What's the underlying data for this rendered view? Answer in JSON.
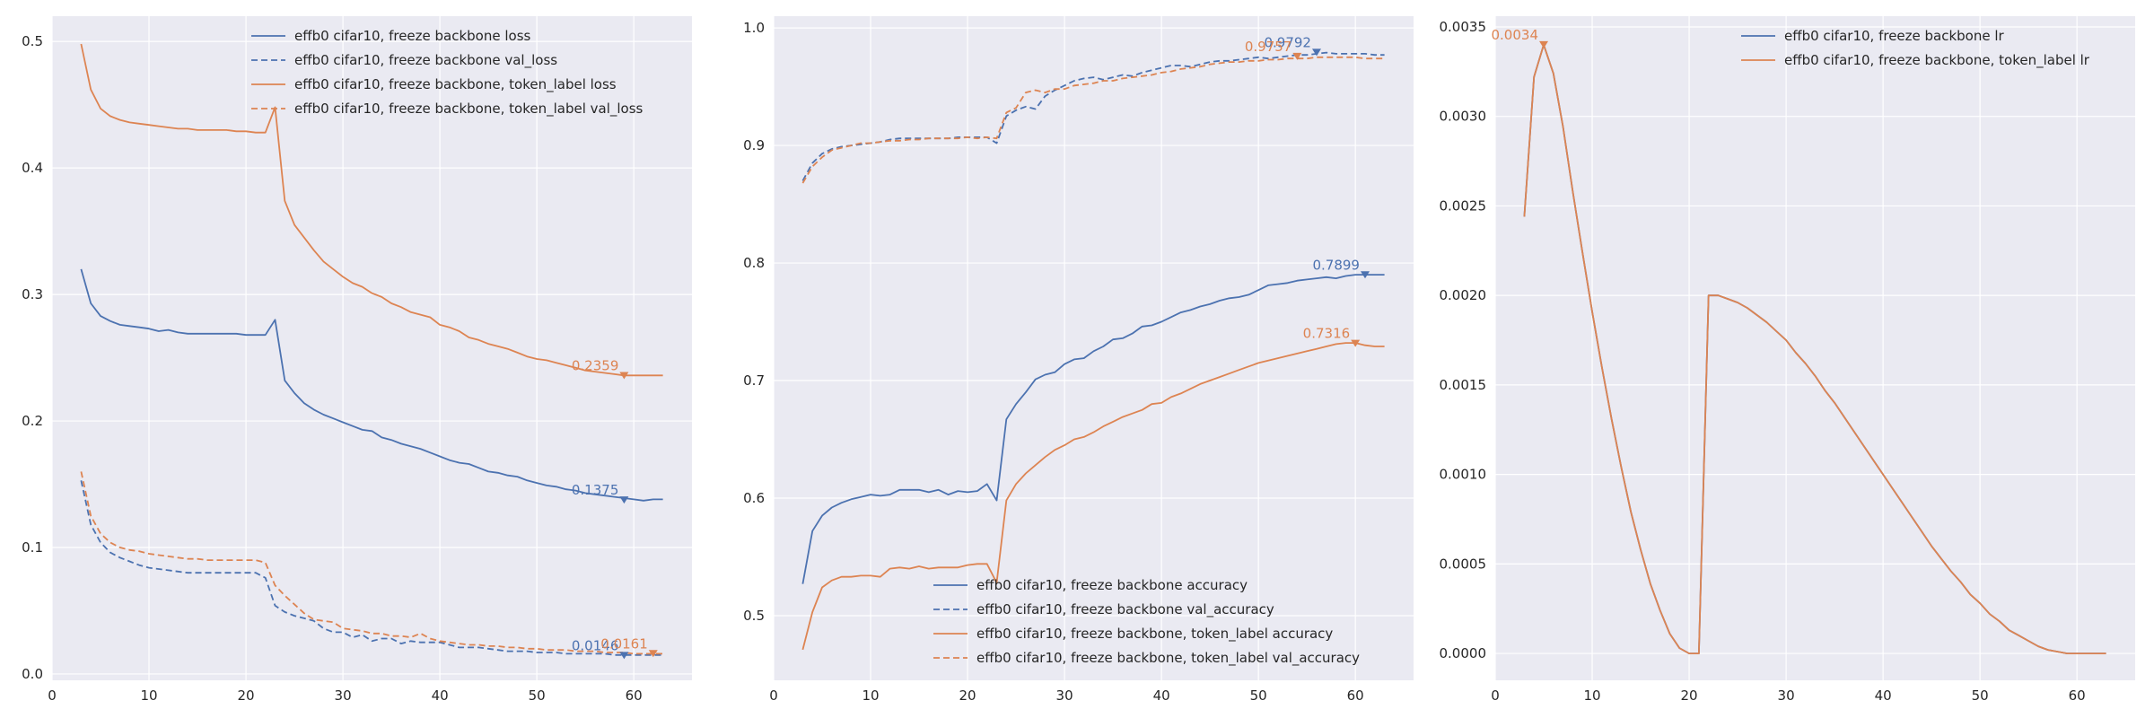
{
  "chart_data": [
    {
      "type": "line",
      "title": "",
      "xlabel": "",
      "ylabel": "",
      "xlim": [
        0,
        66
      ],
      "ylim": [
        -0.005,
        0.52
      ],
      "xticks": [
        0,
        10,
        20,
        30,
        40,
        50,
        60
      ],
      "yticks": [
        0.0,
        0.1,
        0.2,
        0.3,
        0.4,
        0.5
      ],
      "ytick_decimals": 1,
      "grid": true,
      "legend_position": "top-right",
      "x": [
        3,
        4,
        5,
        6,
        7,
        8,
        9,
        10,
        11,
        12,
        13,
        14,
        15,
        16,
        17,
        18,
        19,
        20,
        21,
        22,
        23,
        24,
        25,
        26,
        27,
        28,
        29,
        30,
        31,
        32,
        33,
        34,
        35,
        36,
        37,
        38,
        39,
        40,
        41,
        42,
        43,
        44,
        45,
        46,
        47,
        48,
        49,
        50,
        51,
        52,
        53,
        54,
        55,
        56,
        57,
        58,
        59,
        60,
        61,
        62,
        63
      ],
      "series": [
        {
          "name": "effb0 cifar10, freeze backbone loss",
          "color": "#4c72b0",
          "dash": "solid",
          "values": [
            0.32,
            0.293,
            0.283,
            0.279,
            0.276,
            0.275,
            0.274,
            0.273,
            0.271,
            0.272,
            0.27,
            0.269,
            0.269,
            0.269,
            0.269,
            0.269,
            0.269,
            0.268,
            0.268,
            0.268,
            0.28,
            0.232,
            0.222,
            0.214,
            0.209,
            0.205,
            0.202,
            0.199,
            0.196,
            0.193,
            0.192,
            0.187,
            0.185,
            0.182,
            0.18,
            0.178,
            0.175,
            0.172,
            0.169,
            0.167,
            0.166,
            0.163,
            0.16,
            0.159,
            0.157,
            0.156,
            0.153,
            0.151,
            0.149,
            0.148,
            0.146,
            0.145,
            0.143,
            0.142,
            0.141,
            0.14,
            0.139,
            0.138,
            0.137,
            0.138,
            0.138
          ]
        },
        {
          "name": "effb0 cifar10, freeze backbone val_loss",
          "color": "#4c72b0",
          "dash": "dashed",
          "values": [
            0.153,
            0.118,
            0.104,
            0.096,
            0.092,
            0.089,
            0.086,
            0.084,
            0.083,
            0.082,
            0.081,
            0.08,
            0.08,
            0.08,
            0.08,
            0.08,
            0.08,
            0.08,
            0.08,
            0.076,
            0.054,
            0.049,
            0.046,
            0.044,
            0.042,
            0.036,
            0.033,
            0.033,
            0.029,
            0.031,
            0.026,
            0.028,
            0.028,
            0.024,
            0.026,
            0.025,
            0.025,
            0.025,
            0.023,
            0.021,
            0.021,
            0.021,
            0.02,
            0.019,
            0.018,
            0.018,
            0.018,
            0.017,
            0.017,
            0.017,
            0.016,
            0.016,
            0.016,
            0.016,
            0.016,
            0.015,
            0.015,
            0.015,
            0.015,
            0.015,
            0.015
          ]
        },
        {
          "name": "effb0 cifar10, freeze backbone, token_label loss",
          "color": "#dd8452",
          "dash": "solid",
          "values": [
            0.498,
            0.462,
            0.447,
            0.441,
            0.438,
            0.436,
            0.435,
            0.434,
            0.433,
            0.432,
            0.431,
            0.431,
            0.43,
            0.43,
            0.43,
            0.43,
            0.429,
            0.429,
            0.428,
            0.428,
            0.448,
            0.374,
            0.355,
            0.345,
            0.335,
            0.326,
            0.32,
            0.314,
            0.309,
            0.306,
            0.301,
            0.298,
            0.293,
            0.29,
            0.286,
            0.284,
            0.282,
            0.276,
            0.274,
            0.271,
            0.266,
            0.264,
            0.261,
            0.259,
            0.257,
            0.254,
            0.251,
            0.249,
            0.248,
            0.246,
            0.244,
            0.242,
            0.24,
            0.239,
            0.238,
            0.237,
            0.236,
            0.236,
            0.236,
            0.236,
            0.236
          ]
        },
        {
          "name": "effb0 cifar10, freeze backbone, token_label val_loss",
          "color": "#dd8452",
          "dash": "dashed",
          "values": [
            0.16,
            0.125,
            0.111,
            0.104,
            0.1,
            0.098,
            0.097,
            0.095,
            0.094,
            0.093,
            0.092,
            0.091,
            0.091,
            0.09,
            0.09,
            0.09,
            0.09,
            0.09,
            0.09,
            0.088,
            0.07,
            0.062,
            0.055,
            0.048,
            0.043,
            0.042,
            0.041,
            0.036,
            0.035,
            0.034,
            0.032,
            0.032,
            0.03,
            0.03,
            0.029,
            0.032,
            0.028,
            0.026,
            0.025,
            0.024,
            0.023,
            0.023,
            0.022,
            0.022,
            0.021,
            0.021,
            0.02,
            0.02,
            0.019,
            0.019,
            0.019,
            0.018,
            0.018,
            0.018,
            0.017,
            0.017,
            0.017,
            0.016,
            0.016,
            0.016,
            0.016
          ]
        }
      ],
      "annotations": [
        {
          "text": "0.1375",
          "x": 59,
          "y": 0.1375,
          "color": "#4c72b0"
        },
        {
          "text": "0.2359",
          "x": 59,
          "y": 0.2359,
          "color": "#dd8452"
        },
        {
          "text": "0.0146",
          "x": 59,
          "y": 0.0146,
          "color": "#4c72b0"
        },
        {
          "text": "0.0161",
          "x": 62,
          "y": 0.0161,
          "color": "#dd8452"
        }
      ]
    },
    {
      "type": "line",
      "title": "",
      "xlabel": "",
      "ylabel": "",
      "xlim": [
        0,
        66
      ],
      "ylim": [
        0.445,
        1.01
      ],
      "xticks": [
        0,
        10,
        20,
        30,
        40,
        50,
        60
      ],
      "yticks": [
        0.5,
        0.6,
        0.7,
        0.8,
        0.9,
        1.0
      ],
      "ytick_decimals": 1,
      "grid": true,
      "legend_position": "bottom-right",
      "x": [
        3,
        4,
        5,
        6,
        7,
        8,
        9,
        10,
        11,
        12,
        13,
        14,
        15,
        16,
        17,
        18,
        19,
        20,
        21,
        22,
        23,
        24,
        25,
        26,
        27,
        28,
        29,
        30,
        31,
        32,
        33,
        34,
        35,
        36,
        37,
        38,
        39,
        40,
        41,
        42,
        43,
        44,
        45,
        46,
        47,
        48,
        49,
        50,
        51,
        52,
        53,
        54,
        55,
        56,
        57,
        58,
        59,
        60,
        61,
        62,
        63
      ],
      "series": [
        {
          "name": "effb0 cifar10, freeze backbone accuracy",
          "color": "#4c72b0",
          "dash": "solid",
          "values": [
            0.527,
            0.572,
            0.585,
            0.592,
            0.596,
            0.599,
            0.601,
            0.603,
            0.602,
            0.603,
            0.607,
            0.607,
            0.607,
            0.605,
            0.607,
            0.603,
            0.606,
            0.605,
            0.606,
            0.612,
            0.598,
            0.667,
            0.68,
            0.69,
            0.701,
            0.705,
            0.707,
            0.714,
            0.718,
            0.719,
            0.725,
            0.729,
            0.735,
            0.736,
            0.74,
            0.746,
            0.747,
            0.75,
            0.754,
            0.758,
            0.76,
            0.763,
            0.765,
            0.768,
            0.77,
            0.771,
            0.773,
            0.777,
            0.781,
            0.782,
            0.783,
            0.785,
            0.786,
            0.787,
            0.788,
            0.787,
            0.789,
            0.79,
            0.79,
            0.79,
            0.79
          ]
        },
        {
          "name": "effb0 cifar10, freeze backbone val_accuracy",
          "color": "#4c72b0",
          "dash": "dashed",
          "values": [
            0.87,
            0.885,
            0.893,
            0.897,
            0.899,
            0.9,
            0.901,
            0.902,
            0.903,
            0.905,
            0.906,
            0.906,
            0.906,
            0.906,
            0.906,
            0.906,
            0.907,
            0.907,
            0.907,
            0.907,
            0.902,
            0.925,
            0.93,
            0.933,
            0.931,
            0.942,
            0.947,
            0.951,
            0.955,
            0.957,
            0.958,
            0.956,
            0.958,
            0.96,
            0.959,
            0.962,
            0.964,
            0.966,
            0.968,
            0.968,
            0.967,
            0.969,
            0.971,
            0.972,
            0.972,
            0.973,
            0.974,
            0.975,
            0.974,
            0.975,
            0.976,
            0.977,
            0.977,
            0.978,
            0.979,
            0.978,
            0.978,
            0.978,
            0.978,
            0.977,
            0.977
          ]
        },
        {
          "name": "effb0 cifar10, freeze backbone, token_label accuracy",
          "color": "#dd8452",
          "dash": "solid",
          "values": [
            0.471,
            0.503,
            0.524,
            0.53,
            0.533,
            0.533,
            0.534,
            0.534,
            0.533,
            0.54,
            0.541,
            0.54,
            0.542,
            0.54,
            0.541,
            0.541,
            0.541,
            0.543,
            0.544,
            0.544,
            0.528,
            0.598,
            0.612,
            0.621,
            0.628,
            0.635,
            0.641,
            0.645,
            0.65,
            0.652,
            0.656,
            0.661,
            0.665,
            0.669,
            0.672,
            0.675,
            0.68,
            0.681,
            0.686,
            0.689,
            0.693,
            0.697,
            0.7,
            0.703,
            0.706,
            0.709,
            0.712,
            0.715,
            0.717,
            0.719,
            0.721,
            0.723,
            0.725,
            0.727,
            0.729,
            0.731,
            0.732,
            0.732,
            0.73,
            0.729,
            0.729
          ]
        },
        {
          "name": "effb0 cifar10, freeze backbone, token_label val_accuracy",
          "color": "#dd8452",
          "dash": "dashed",
          "values": [
            0.868,
            0.882,
            0.89,
            0.896,
            0.898,
            0.9,
            0.902,
            0.902,
            0.903,
            0.904,
            0.904,
            0.905,
            0.905,
            0.906,
            0.906,
            0.906,
            0.906,
            0.907,
            0.906,
            0.907,
            0.906,
            0.928,
            0.932,
            0.945,
            0.947,
            0.945,
            0.948,
            0.948,
            0.951,
            0.952,
            0.953,
            0.955,
            0.955,
            0.957,
            0.958,
            0.959,
            0.96,
            0.962,
            0.963,
            0.965,
            0.966,
            0.967,
            0.969,
            0.97,
            0.971,
            0.971,
            0.972,
            0.972,
            0.973,
            0.973,
            0.974,
            0.974,
            0.974,
            0.975,
            0.975,
            0.975,
            0.975,
            0.975,
            0.974,
            0.974,
            0.974
          ]
        }
      ],
      "annotations": [
        {
          "text": "0.9792",
          "x": 56,
          "y": 0.9792,
          "color": "#4c72b0"
        },
        {
          "text": "0.9757",
          "x": 54,
          "y": 0.9757,
          "color": "#dd8452"
        },
        {
          "text": "0.7899",
          "x": 61,
          "y": 0.7899,
          "color": "#4c72b0"
        },
        {
          "text": "0.7316",
          "x": 60,
          "y": 0.7316,
          "color": "#dd8452"
        }
      ]
    },
    {
      "type": "line",
      "title": "",
      "xlabel": "",
      "ylabel": "",
      "xlim": [
        0,
        66
      ],
      "ylim": [
        -0.00015,
        0.00356
      ],
      "xticks": [
        0,
        10,
        20,
        30,
        40,
        50,
        60
      ],
      "yticks": [
        0.0,
        0.0005,
        0.001,
        0.0015,
        0.002,
        0.0025,
        0.003,
        0.0035
      ],
      "ytick_decimals": 4,
      "grid": true,
      "legend_position": "top-right",
      "x": [
        3,
        4,
        5,
        6,
        7,
        8,
        9,
        10,
        11,
        12,
        13,
        14,
        15,
        16,
        17,
        18,
        19,
        20,
        21,
        22,
        23,
        24,
        25,
        26,
        27,
        28,
        29,
        30,
        31,
        32,
        33,
        34,
        35,
        36,
        37,
        38,
        39,
        40,
        41,
        42,
        43,
        44,
        45,
        46,
        47,
        48,
        49,
        50,
        51,
        52,
        53,
        54,
        55,
        56,
        57,
        58,
        59,
        60,
        61,
        62,
        63
      ],
      "series": [
        {
          "name": "effb0 cifar10, freeze backbone lr",
          "color": "#4c72b0",
          "dash": "solid",
          "values": [
            0.00244,
            0.00322,
            0.0034,
            0.00324,
            0.00294,
            0.00258,
            0.00224,
            0.00191,
            0.0016,
            0.00131,
            0.00104,
            0.00079,
            0.00058,
            0.00039,
            0.00024,
            0.00011,
            3e-05,
            0.0,
            0.0,
            0.002,
            0.002,
            0.00198,
            0.00196,
            0.00193,
            0.00189,
            0.00185,
            0.0018,
            0.00175,
            0.00168,
            0.00162,
            0.00155,
            0.00147,
            0.0014,
            0.00132,
            0.00124,
            0.00116,
            0.00108,
            0.001,
            0.00092,
            0.00084,
            0.00076,
            0.00068,
            0.0006,
            0.00053,
            0.00046,
            0.0004,
            0.00033,
            0.00028,
            0.00022,
            0.00018,
            0.00013,
            0.0001,
            7e-05,
            4e-05,
            2e-05,
            1e-05,
            0.0,
            0.0,
            0.0,
            0.0,
            0.0
          ]
        },
        {
          "name": "effb0 cifar10, freeze backbone, token_label lr",
          "color": "#dd8452",
          "dash": "solid",
          "values": [
            0.00244,
            0.00322,
            0.0034,
            0.00324,
            0.00294,
            0.00258,
            0.00224,
            0.00191,
            0.0016,
            0.00131,
            0.00104,
            0.00079,
            0.00058,
            0.00039,
            0.00024,
            0.00011,
            3e-05,
            0.0,
            0.0,
            0.002,
            0.002,
            0.00198,
            0.00196,
            0.00193,
            0.00189,
            0.00185,
            0.0018,
            0.00175,
            0.00168,
            0.00162,
            0.00155,
            0.00147,
            0.0014,
            0.00132,
            0.00124,
            0.00116,
            0.00108,
            0.001,
            0.00092,
            0.00084,
            0.00076,
            0.00068,
            0.0006,
            0.00053,
            0.00046,
            0.0004,
            0.00033,
            0.00028,
            0.00022,
            0.00018,
            0.00013,
            0.0001,
            7e-05,
            4e-05,
            2e-05,
            1e-05,
            0.0,
            0.0,
            0.0,
            0.0,
            0.0
          ]
        }
      ],
      "annotations": [
        {
          "text": "0.0034",
          "x": 5,
          "y": 0.0034,
          "color": "#dd8452"
        }
      ]
    }
  ]
}
